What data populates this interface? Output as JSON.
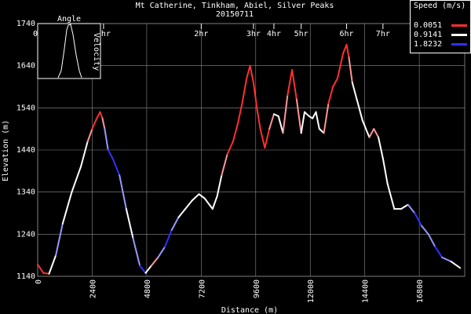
{
  "chart_data": {
    "type": "line",
    "title": "Mt Catherine, Tinkham, Abiel, Silver Peaks",
    "subtitle": "20150711",
    "xlabel": "Distance (m)",
    "ylabel": "Elevation (m)",
    "xlim": [
      0,
      18800
    ],
    "ylim": [
      1140,
      1740
    ],
    "x_ticks": [
      "0",
      "2400",
      "4800",
      "7200",
      "9600",
      "12000",
      "14400",
      "16800"
    ],
    "x_tick_values": [
      0,
      2400,
      4800,
      7200,
      9600,
      12000,
      14400,
      16800
    ],
    "y_ticks": [
      "1140",
      "1240",
      "1340",
      "1440",
      "1540",
      "1640",
      "1740"
    ],
    "y_tick_values": [
      1140,
      1240,
      1340,
      1440,
      1540,
      1640,
      1740
    ],
    "time_markers": [
      {
        "label": "0h",
        "x": 0
      },
      {
        "label": "1hr",
        "x": 2900
      },
      {
        "label": "2hr",
        "x": 7200
      },
      {
        "label": "3hr",
        "x": 9500
      },
      {
        "label": "4hr",
        "x": 10400
      },
      {
        "label": "5hr",
        "x": 11600
      },
      {
        "label": "6hr",
        "x": 13600
      },
      {
        "label": "7hr",
        "x": 15200
      }
    ],
    "grid": true,
    "series": [
      {
        "name": "Elevation",
        "x": [
          0,
          250,
          500,
          800,
          1100,
          1500,
          1900,
          2200,
          2400,
          2600,
          2750,
          2850,
          2950,
          3100,
          3300,
          3600,
          3900,
          4200,
          4500,
          4750,
          5000,
          5300,
          5600,
          5900,
          6200,
          6500,
          6800,
          7100,
          7350,
          7700,
          7900,
          8100,
          8350,
          8600,
          8800,
          9000,
          9200,
          9350,
          9500,
          9650,
          9800,
          10000,
          10200,
          10400,
          10600,
          10800,
          11000,
          11200,
          11400,
          11600,
          11750,
          11950,
          12100,
          12250,
          12400,
          12600,
          12800,
          13000,
          13200,
          13450,
          13600,
          13700,
          13850,
          14050,
          14300,
          14600,
          14800,
          15000,
          15200,
          15400,
          15700,
          16000,
          16300,
          16600,
          16900,
          17200,
          17500,
          17800,
          18200,
          18600
        ],
        "values": [
          1168,
          1148,
          1146,
          1190,
          1265,
          1340,
          1400,
          1460,
          1490,
          1515,
          1530,
          1515,
          1490,
          1440,
          1420,
          1380,
          1300,
          1230,
          1165,
          1148,
          1165,
          1185,
          1210,
          1250,
          1280,
          1300,
          1320,
          1335,
          1325,
          1300,
          1330,
          1380,
          1430,
          1460,
          1500,
          1550,
          1610,
          1640,
          1600,
          1540,
          1490,
          1445,
          1490,
          1525,
          1520,
          1480,
          1570,
          1630,
          1560,
          1480,
          1530,
          1520,
          1515,
          1530,
          1490,
          1480,
          1550,
          1590,
          1610,
          1670,
          1690,
          1660,
          1600,
          1560,
          1510,
          1470,
          1490,
          1470,
          1420,
          1360,
          1300,
          1300,
          1310,
          1290,
          1260,
          1240,
          1210,
          1185,
          1175,
          1160
        ],
        "speed": [
          0.0051,
          0.0051,
          0.0051,
          1.8232,
          0.9141,
          0.9141,
          0.9141,
          0.9141,
          0.0051,
          0.0051,
          0.0051,
          0.0051,
          0.9141,
          1.8232,
          1.8232,
          1.8232,
          0.9141,
          0.9141,
          1.8232,
          1.8232,
          0.0051,
          0.9141,
          1.8232,
          1.8232,
          0.9141,
          0.9141,
          0.9141,
          0.9141,
          0.9141,
          0.9141,
          0.9141,
          0.9141,
          0.0051,
          0.0051,
          0.0051,
          0.0051,
          0.0051,
          0.0051,
          0.0051,
          0.0051,
          0.0051,
          0.0051,
          0.0051,
          0.9141,
          0.9141,
          0.9141,
          0.0051,
          0.0051,
          0.0051,
          0.9141,
          0.9141,
          0.9141,
          0.9141,
          0.9141,
          0.9141,
          0.9141,
          0.0051,
          0.0051,
          0.0051,
          0.0051,
          0.0051,
          0.0051,
          0.9141,
          0.9141,
          0.9141,
          0.9141,
          0.0051,
          0.9141,
          0.9141,
          0.9141,
          0.9141,
          0.9141,
          0.9141,
          1.8232,
          1.8232,
          0.9141,
          1.8232,
          1.8232,
          0.9141,
          0.9141
        ]
      }
    ],
    "legend": {
      "title": "Speed (m/s)",
      "placement": "top-right",
      "entries": [
        {
          "label": "0.0051",
          "color": "#ff3030"
        },
        {
          "label": "0.9141",
          "color": "#ffffff"
        },
        {
          "label": "1.8232",
          "color": "#3030ff"
        }
      ]
    },
    "inset": {
      "title": "Angle",
      "ylabel": "Velocity",
      "type": "line"
    }
  },
  "colors": {
    "background": "#000000",
    "grid": "#8c8c8c",
    "text": "#ffffff",
    "slow": "#ff3030",
    "mid": "#ffffff",
    "fast": "#3030ff"
  }
}
